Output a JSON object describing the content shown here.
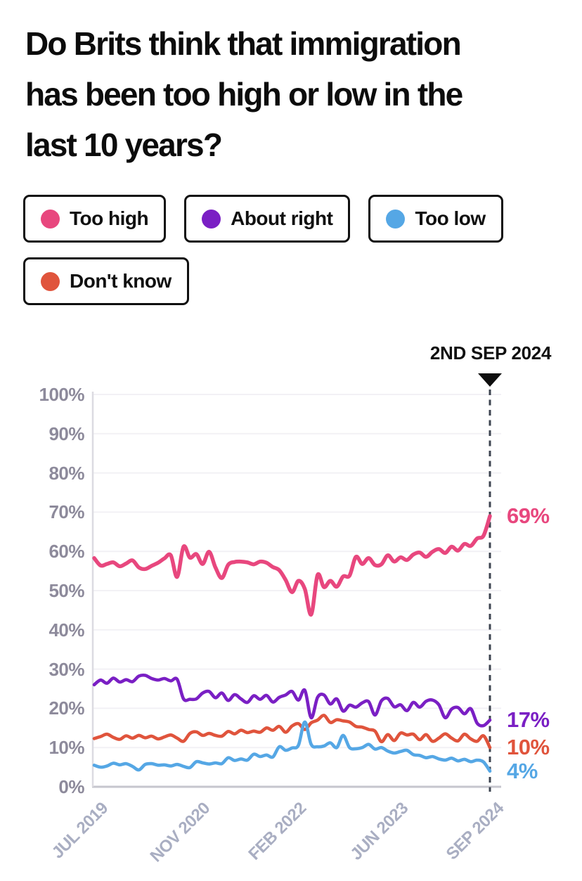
{
  "title": {
    "text": "Do Brits think that immigration has been too high or low in the last 10 years?",
    "lines": [
      "Do Brits think that immigration",
      "has been too high or low in the",
      "last 10 years?"
    ]
  },
  "annotation": {
    "label": "2ND SEP 2024"
  },
  "chart_data": {
    "type": "line",
    "title": "Do Brits think that immigration has been too high or low in the last 10 years?",
    "xlabel": "",
    "ylabel": "",
    "ylim": [
      0,
      100
    ],
    "grid": true,
    "legend_position": "top",
    "x_start": "JUL 2019",
    "x_end": "SEP 2024",
    "marker_line": {
      "label": "2ND SEP 2024",
      "position_month": 62,
      "style": "dashed",
      "color": "#3d4450"
    },
    "yticks": [
      {
        "v": 0,
        "label": "0%"
      },
      {
        "v": 10,
        "label": "10%"
      },
      {
        "v": 20,
        "label": "20%"
      },
      {
        "v": 30,
        "label": "30%"
      },
      {
        "v": 40,
        "label": "40%"
      },
      {
        "v": 50,
        "label": "50%"
      },
      {
        "v": 60,
        "label": "60%"
      },
      {
        "v": 70,
        "label": "70%"
      },
      {
        "v": 80,
        "label": "80%"
      },
      {
        "v": 90,
        "label": "90%"
      },
      {
        "v": 100,
        "label": "100%"
      }
    ],
    "xticks": [
      {
        "m": 0,
        "label": "JUL 2019"
      },
      {
        "m": 16,
        "label": "NOV 2020"
      },
      {
        "m": 31,
        "label": "FEB 2022"
      },
      {
        "m": 47,
        "label": "JUN 2023"
      },
      {
        "m": 62,
        "label": "SEP 2024"
      }
    ],
    "series": [
      {
        "name": "Too high",
        "color": "#e8477e",
        "end_label": "69%",
        "end_value": 69,
        "values": [
          58.3,
          56.4,
          56.8,
          57.2,
          56.2,
          56.9,
          57.7,
          55.9,
          55.5,
          56.3,
          57.1,
          58.2,
          59.0,
          53.5,
          61.2,
          58.4,
          59.3,
          56.8,
          59.9,
          55.9,
          53.2,
          56.6,
          57.3,
          57.4,
          57.2,
          56.7,
          57.4,
          57.1,
          56.0,
          55.2,
          52.7,
          49.6,
          52.5,
          50.4,
          43.9,
          54.0,
          50.9,
          52.5,
          51.0,
          53.6,
          53.8,
          58.6,
          56.8,
          58.3,
          56.5,
          56.7,
          59.0,
          57.4,
          58.5,
          57.8,
          59.2,
          59.7,
          58.6,
          59.9,
          60.6,
          59.6,
          61.2,
          60.2,
          61.9,
          61.4,
          63.3,
          64.0,
          69.0
        ]
      },
      {
        "name": "About right",
        "color": "#7a1fc4",
        "end_label": "17%",
        "end_value": 17,
        "values": [
          26.0,
          27.2,
          26.4,
          27.7,
          26.7,
          27.3,
          26.8,
          28.2,
          28.4,
          27.6,
          27.2,
          27.6,
          27.0,
          27.4,
          22.4,
          22.3,
          22.4,
          23.9,
          24.3,
          22.7,
          23.9,
          22.0,
          23.5,
          22.4,
          21.5,
          23.2,
          22.3,
          23.3,
          21.6,
          22.8,
          23.4,
          24.3,
          22.1,
          24.6,
          17.6,
          22.8,
          23.4,
          21.1,
          22.4,
          19.3,
          20.8,
          20.3,
          21.4,
          21.7,
          18.3,
          21.9,
          22.5,
          20.4,
          20.9,
          19.4,
          21.5,
          20.3,
          21.8,
          22.1,
          20.9,
          17.6,
          19.8,
          20.2,
          18.6,
          19.9,
          16.2,
          15.6,
          17.0
        ]
      },
      {
        "name": "Too low",
        "color": "#55a7e5",
        "end_label": "4%",
        "end_value": 4,
        "values": [
          5.5,
          5.0,
          5.3,
          6.0,
          5.6,
          5.9,
          5.2,
          4.3,
          5.7,
          5.9,
          5.5,
          5.6,
          5.3,
          5.7,
          5.2,
          4.9,
          6.4,
          6.1,
          5.8,
          6.1,
          5.9,
          7.4,
          6.7,
          7.1,
          6.8,
          8.3,
          7.7,
          8.1,
          7.6,
          10.2,
          9.3,
          9.9,
          10.6,
          16.5,
          10.8,
          10.2,
          10.4,
          11.2,
          10.0,
          13.1,
          10.0,
          9.7,
          10.0,
          10.8,
          9.6,
          10.0,
          9.1,
          8.6,
          9.0,
          9.3,
          8.2,
          8.0,
          7.4,
          7.7,
          7.1,
          6.8,
          7.3,
          6.6,
          7.0,
          6.4,
          6.8,
          6.3,
          4.0
        ]
      },
      {
        "name": "Don't know",
        "color": "#e0543c",
        "end_label": "10%",
        "end_value": 10,
        "values": [
          12.3,
          12.8,
          13.4,
          12.6,
          12.1,
          13.0,
          12.4,
          13.1,
          12.5,
          12.9,
          12.2,
          12.7,
          13.2,
          12.4,
          11.6,
          13.6,
          14.0,
          13.1,
          13.6,
          13.1,
          12.9,
          14.1,
          13.5,
          14.4,
          13.8,
          14.2,
          13.9,
          15.0,
          14.4,
          15.4,
          13.9,
          15.5,
          16.1,
          14.6,
          16.3,
          17.0,
          18.2,
          16.4,
          17.1,
          16.8,
          16.5,
          15.4,
          15.2,
          14.6,
          14.2,
          11.5,
          13.3,
          11.8,
          13.7,
          13.2,
          13.4,
          12.0,
          13.3,
          11.6,
          12.4,
          13.5,
          12.4,
          11.7,
          13.4,
          12.2,
          11.6,
          13.0,
          10.0
        ]
      }
    ]
  },
  "colors": {
    "too_high": "#e8477e",
    "about_right": "#7a1fc4",
    "too_low": "#55a7e5",
    "dont_know": "#e0543c",
    "y_tick_text": "#8d8a9b",
    "x_tick_text": "#a9aec2",
    "gridline": "#f2f1f5",
    "marker_dash": "#3d4450"
  }
}
